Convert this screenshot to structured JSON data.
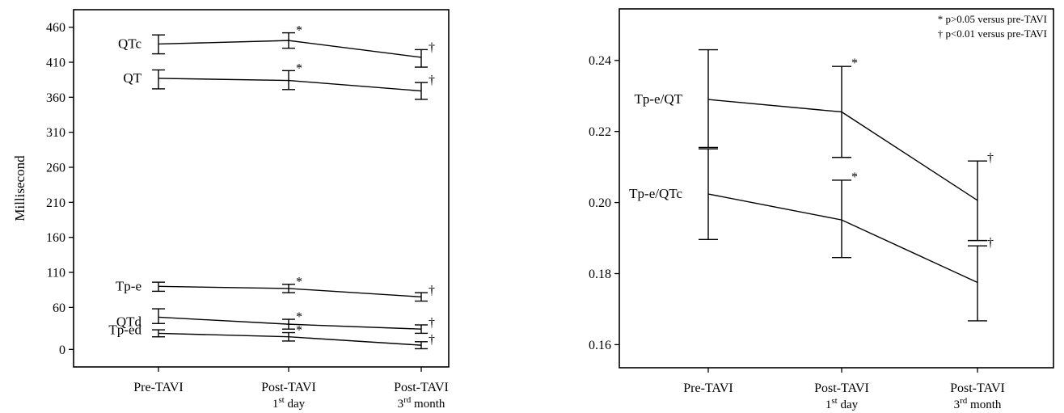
{
  "chart_data": [
    {
      "type": "line",
      "title": "",
      "xlabel": "",
      "ylabel": "Millisecond",
      "ylim": [
        -25,
        485
      ],
      "yticks": [
        0,
        60,
        110,
        160,
        210,
        260,
        310,
        360,
        410,
        460
      ],
      "categories": [
        {
          "line1": "Pre-TAVI",
          "base2": "",
          "sup": "",
          "rest2": ""
        },
        {
          "line1": "Post-TAVI",
          "base2": "1",
          "sup": "st",
          "rest2": " day"
        },
        {
          "line1": "Post-TAVI",
          "base2": "3",
          "sup": "rd",
          "rest2": " month"
        }
      ],
      "series": [
        {
          "name": "QTc",
          "values": [
            436,
            441,
            417
          ],
          "err_low": [
            422,
            430,
            403
          ],
          "err_high": [
            449,
            452,
            428
          ],
          "marks": [
            "",
            "*",
            "†"
          ]
        },
        {
          "name": "QT",
          "values": [
            387,
            384,
            369
          ],
          "err_low": [
            372,
            371,
            357
          ],
          "err_high": [
            399,
            398,
            381
          ],
          "marks": [
            "",
            "*",
            "†"
          ]
        },
        {
          "name": "Tp-e",
          "values": [
            90,
            87,
            75
          ],
          "err_low": [
            83,
            81,
            69
          ],
          "err_high": [
            96,
            93,
            81
          ],
          "marks": [
            "",
            "*",
            "†"
          ]
        },
        {
          "name": "QTd",
          "values": [
            46,
            36,
            29
          ],
          "err_low": [
            37,
            29,
            23
          ],
          "err_high": [
            58,
            43,
            35
          ],
          "marks": [
            "",
            "*",
            "†"
          ]
        },
        {
          "name": "Tp-ed",
          "values": [
            23,
            18,
            6
          ],
          "err_low": [
            18,
            12,
            1
          ],
          "err_high": [
            28,
            24,
            11
          ],
          "marks": [
            "",
            "*",
            "†"
          ]
        }
      ]
    },
    {
      "type": "line",
      "title": "",
      "xlabel": "",
      "ylabel": "",
      "ylim": [
        0.1535,
        0.2545
      ],
      "yticks": [
        0.16,
        0.18,
        0.2,
        0.22,
        0.24
      ],
      "ytick_labels": [
        "0.16",
        "0.18",
        "0.20",
        "0.22",
        "0.24"
      ],
      "legend_notes": [
        "* p>0.05 versus pre-TAVI",
        "† p<0.01 versus pre-TAVI"
      ],
      "categories": [
        {
          "line1": "Pre-TAVI",
          "base2": "",
          "sup": "",
          "rest2": ""
        },
        {
          "line1": "Post-TAVI",
          "base2": "1",
          "sup": "st",
          "rest2": " day"
        },
        {
          "line1": "Post-TAVI",
          "base2": "3",
          "sup": "rd",
          "rest2": " month"
        }
      ],
      "series": [
        {
          "name": "Tp-e/QT",
          "values": [
            0.229,
            0.2255,
            0.2006
          ],
          "err_low": [
            0.2155,
            0.2127,
            0.1893
          ],
          "err_high": [
            0.243,
            0.2383,
            0.2117
          ],
          "marks": [
            "",
            "*",
            "†"
          ]
        },
        {
          "name": "Tp-e/QTc",
          "values": [
            0.2024,
            0.1951,
            0.1775
          ],
          "err_low": [
            0.1896,
            0.1845,
            0.1667
          ],
          "err_high": [
            0.2151,
            0.2063,
            0.1878
          ],
          "marks": [
            "",
            "*",
            "†"
          ]
        }
      ]
    }
  ]
}
